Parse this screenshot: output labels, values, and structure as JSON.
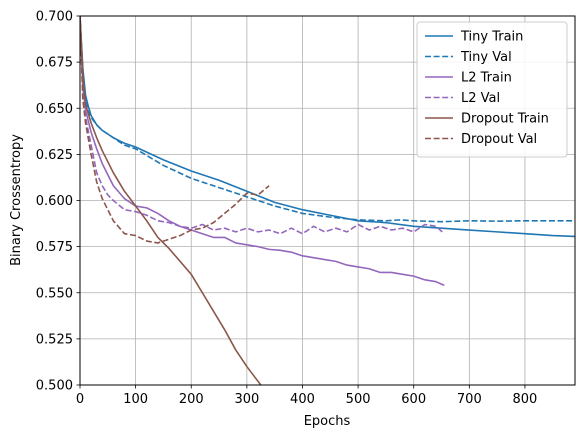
{
  "chart_data": {
    "type": "line",
    "xlabel": "Epochs",
    "ylabel": "Binary Crossentropy",
    "xlim": [
      0,
      890
    ],
    "ylim": [
      0.5,
      0.7
    ],
    "xticks": [
      0,
      100,
      200,
      300,
      400,
      500,
      600,
      700,
      800
    ],
    "yticks": [
      0.5,
      0.525,
      0.55,
      0.575,
      0.6,
      0.625,
      0.65,
      0.675,
      0.7
    ],
    "xtick_labels": [
      "0",
      "100",
      "200",
      "300",
      "400",
      "500",
      "600",
      "700",
      "800"
    ],
    "ytick_labels": [
      "0.500",
      "0.525",
      "0.550",
      "0.575",
      "0.600",
      "0.625",
      "0.650",
      "0.675",
      "0.700"
    ],
    "grid": true,
    "legend_position": "top-right",
    "series": [
      {
        "name": "Tiny Train",
        "color": "#1f77b4",
        "style": "solid",
        "x": [
          0,
          5,
          10,
          15,
          20,
          30,
          40,
          60,
          80,
          100,
          150,
          200,
          250,
          300,
          350,
          400,
          450,
          500,
          550,
          600,
          650,
          700,
          750,
          800,
          850,
          890
        ],
        "y": [
          0.7,
          0.672,
          0.657,
          0.651,
          0.646,
          0.641,
          0.638,
          0.634,
          0.631,
          0.629,
          0.622,
          0.616,
          0.611,
          0.605,
          0.599,
          0.595,
          0.592,
          0.589,
          0.588,
          0.586,
          0.585,
          0.584,
          0.583,
          0.582,
          0.581,
          0.5805
        ]
      },
      {
        "name": "Tiny Val",
        "color": "#1f77b4",
        "style": "dashed",
        "x": [
          0,
          5,
          10,
          15,
          20,
          30,
          40,
          60,
          80,
          100,
          150,
          200,
          250,
          300,
          350,
          400,
          450,
          500,
          550,
          575,
          600,
          650,
          700,
          750,
          800,
          850,
          890
        ],
        "y": [
          0.7,
          0.67,
          0.655,
          0.648,
          0.645,
          0.641,
          0.638,
          0.634,
          0.63,
          0.628,
          0.619,
          0.612,
          0.607,
          0.602,
          0.597,
          0.593,
          0.591,
          0.5895,
          0.589,
          0.5895,
          0.589,
          0.5885,
          0.589,
          0.5888,
          0.589,
          0.589,
          0.589
        ]
      },
      {
        "name": "L2 Train",
        "color": "#9467bd",
        "style": "solid",
        "x": [
          0,
          5,
          10,
          20,
          30,
          40,
          60,
          80,
          100,
          120,
          140,
          160,
          180,
          200,
          220,
          240,
          260,
          280,
          300,
          320,
          340,
          360,
          380,
          400,
          420,
          440,
          460,
          480,
          500,
          520,
          540,
          560,
          580,
          600,
          620,
          640,
          655
        ],
        "y": [
          0.7,
          0.662,
          0.649,
          0.637,
          0.628,
          0.62,
          0.608,
          0.601,
          0.597,
          0.596,
          0.593,
          0.589,
          0.586,
          0.584,
          0.582,
          0.58,
          0.58,
          0.577,
          0.576,
          0.575,
          0.5735,
          0.573,
          0.572,
          0.57,
          0.569,
          0.568,
          0.567,
          0.565,
          0.564,
          0.563,
          0.561,
          0.561,
          0.56,
          0.559,
          0.557,
          0.556,
          0.554
        ]
      },
      {
        "name": "L2 Val",
        "color": "#9467bd",
        "style": "dashed",
        "x": [
          0,
          5,
          10,
          20,
          30,
          40,
          50,
          60,
          80,
          100,
          120,
          140,
          160,
          180,
          200,
          220,
          240,
          260,
          280,
          300,
          320,
          340,
          360,
          380,
          400,
          420,
          440,
          460,
          480,
          500,
          520,
          540,
          560,
          580,
          600,
          620,
          640,
          655
        ],
        "y": [
          0.7,
          0.66,
          0.645,
          0.63,
          0.615,
          0.608,
          0.603,
          0.6,
          0.595,
          0.594,
          0.592,
          0.589,
          0.588,
          0.586,
          0.585,
          0.587,
          0.584,
          0.585,
          0.583,
          0.585,
          0.583,
          0.584,
          0.582,
          0.585,
          0.582,
          0.586,
          0.583,
          0.585,
          0.583,
          0.587,
          0.584,
          0.586,
          0.584,
          0.585,
          0.583,
          0.587,
          0.586,
          0.582
        ]
      },
      {
        "name": "Dropout Train",
        "color": "#8c564b",
        "style": "solid",
        "x": [
          0,
          5,
          10,
          20,
          30,
          40,
          60,
          80,
          100,
          120,
          140,
          160,
          180,
          200,
          220,
          240,
          260,
          280,
          300,
          310,
          320,
          325
        ],
        "y": [
          0.7,
          0.668,
          0.652,
          0.642,
          0.634,
          0.627,
          0.615,
          0.605,
          0.597,
          0.589,
          0.58,
          0.574,
          0.567,
          0.56,
          0.55,
          0.54,
          0.53,
          0.519,
          0.51,
          0.506,
          0.502,
          0.5
        ]
      },
      {
        "name": "Dropout Val",
        "color": "#8c564b",
        "style": "dashed",
        "x": [
          0,
          5,
          10,
          20,
          30,
          40,
          50,
          60,
          80,
          100,
          120,
          140,
          160,
          180,
          200,
          220,
          240,
          260,
          280,
          300,
          320,
          340
        ],
        "y": [
          0.7,
          0.655,
          0.642,
          0.625,
          0.61,
          0.601,
          0.595,
          0.589,
          0.582,
          0.581,
          0.578,
          0.577,
          0.579,
          0.581,
          0.584,
          0.585,
          0.588,
          0.593,
          0.598,
          0.604,
          0.603,
          0.608
        ]
      }
    ]
  }
}
